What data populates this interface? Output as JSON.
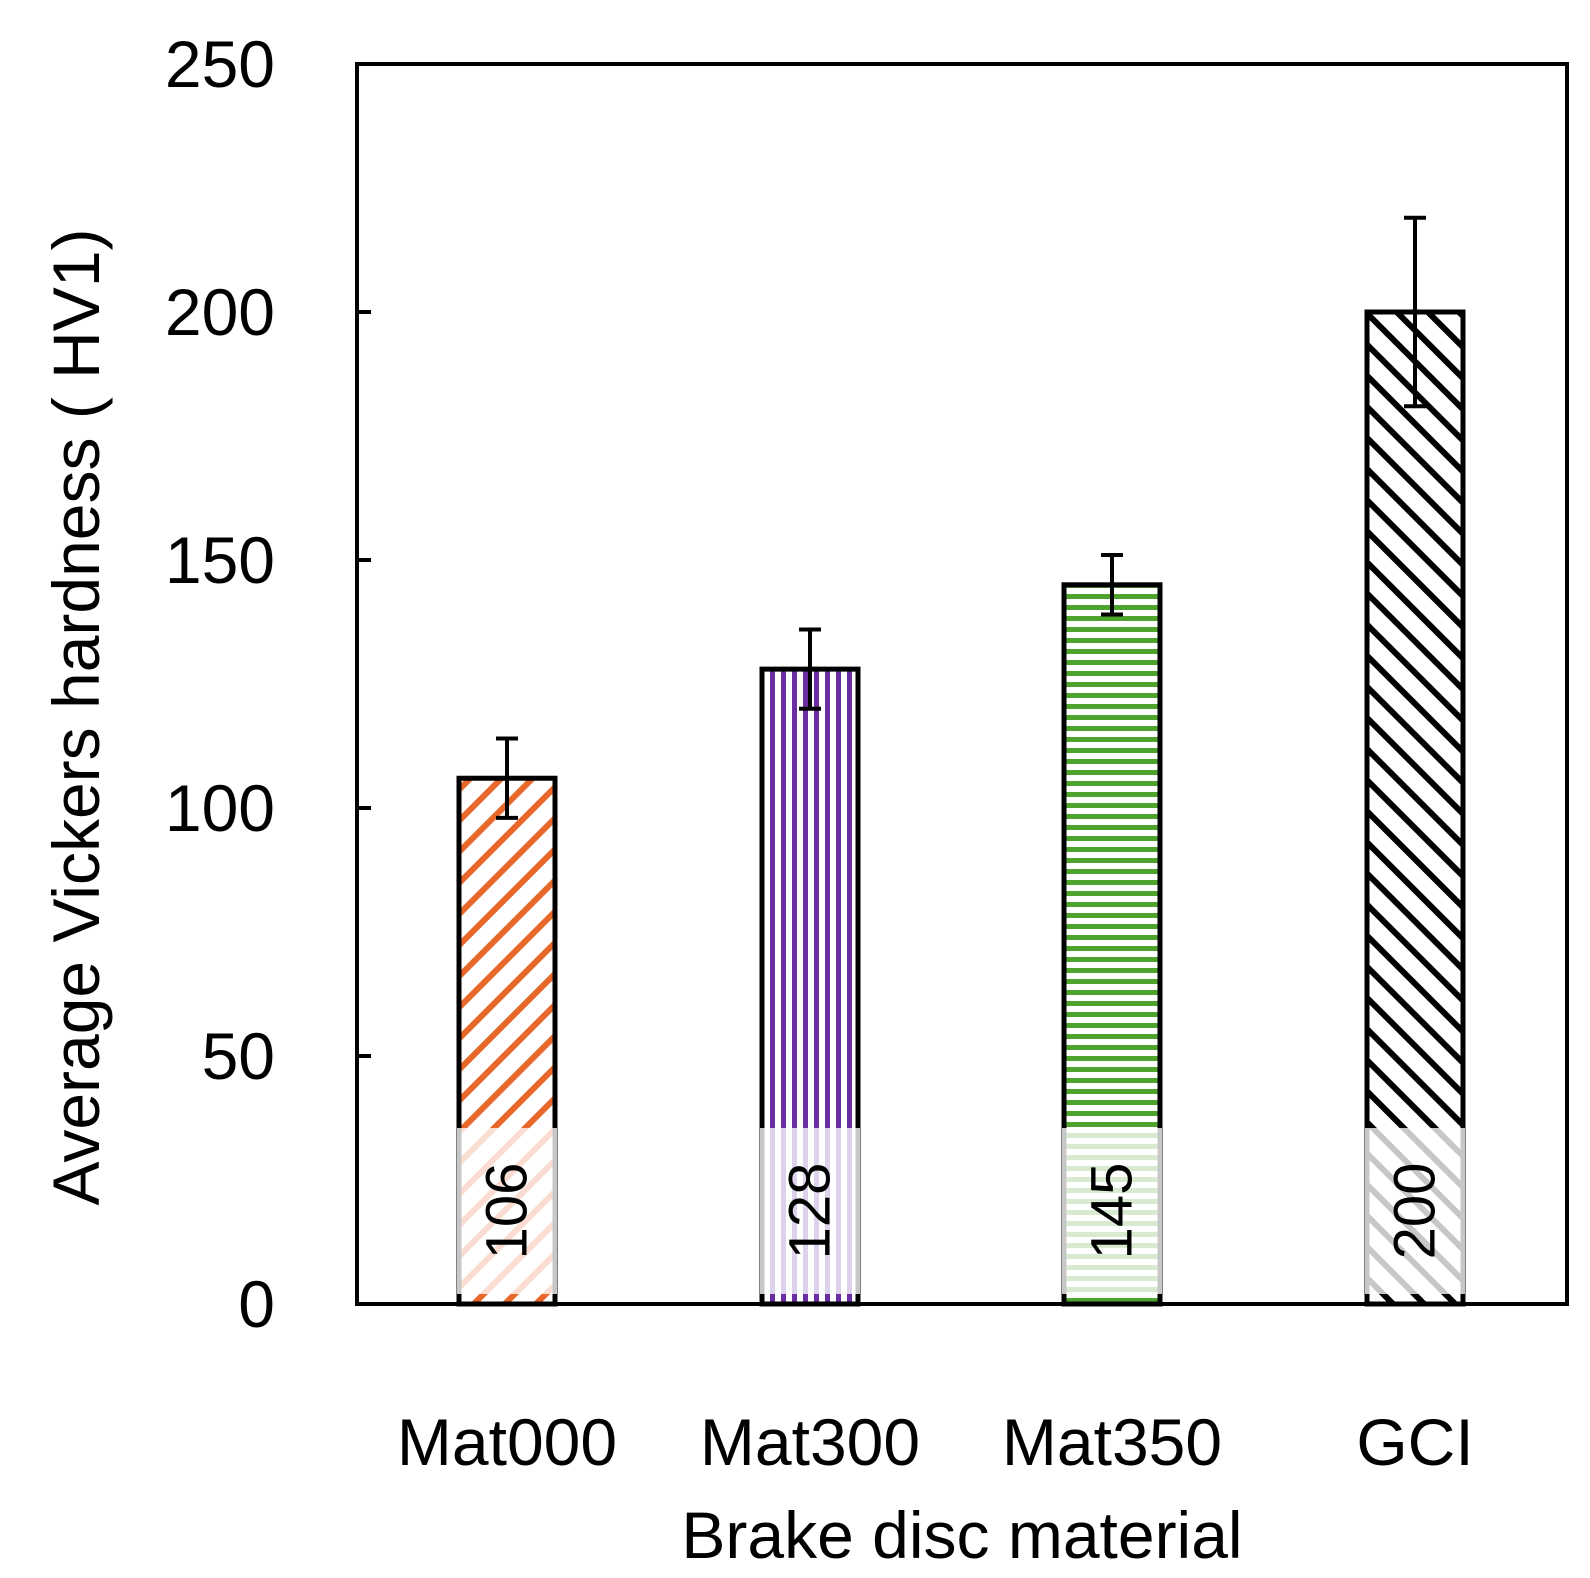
{
  "chart_data": {
    "type": "bar",
    "title": "",
    "xlabel": "Brake disc material",
    "ylabel": "Average Vickers hardness ( HV1)",
    "ylim": [
      0,
      250
    ],
    "yticks": [
      0,
      50,
      100,
      150,
      200,
      250
    ],
    "categories": [
      "Mat000",
      "Mat300",
      "Mat350",
      "GCI"
    ],
    "values": [
      106,
      128,
      145,
      200
    ],
    "error": [
      8,
      8,
      6,
      19
    ],
    "value_labels": [
      "106",
      "128",
      "145",
      "200"
    ],
    "bar_patterns": [
      "diagonal-backslash",
      "vertical",
      "horizontal",
      "diagonal-slash"
    ],
    "grid": false,
    "legend": "none"
  },
  "colors": {
    "Mat000": "#e8672a",
    "Mat300": "#6a2ea2",
    "Mat350": "#4ea22e",
    "GCI": "#000000",
    "axis": "#000000",
    "label_band": "rgba(255,255,255,0.78)"
  }
}
